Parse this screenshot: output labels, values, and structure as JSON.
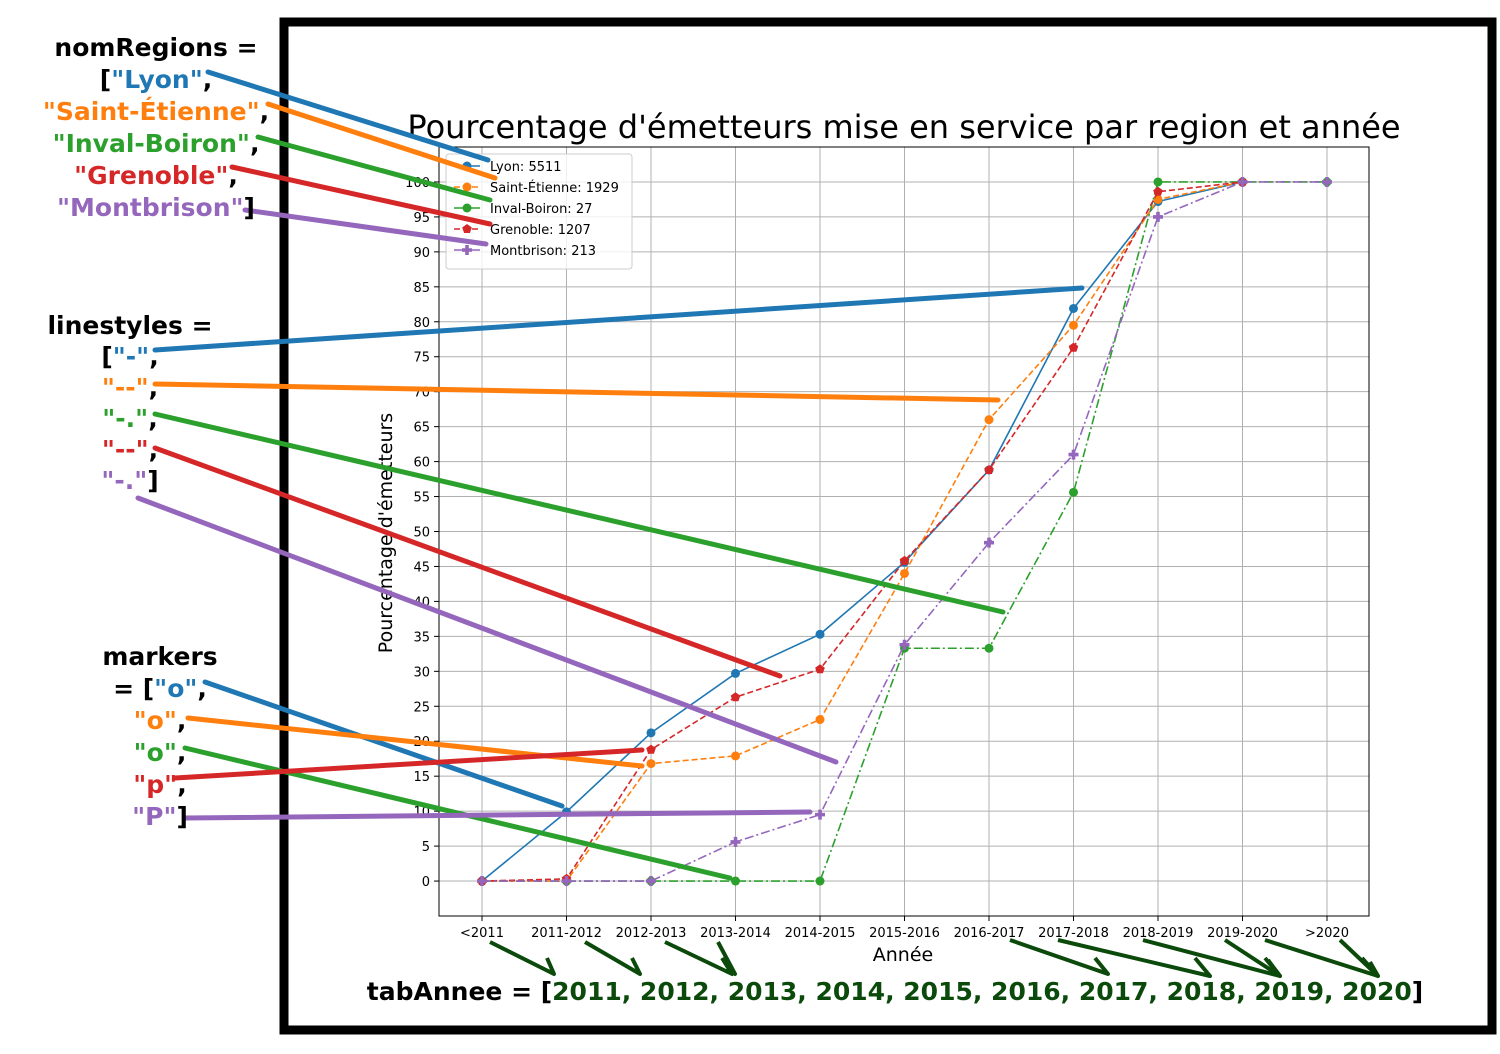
{
  "chart_data": {
    "type": "line",
    "title": "Pourcentage d'émetteurs mise en service par region et année",
    "xlabel": "Année",
    "ylabel": "Pourcentage d'émetteurs",
    "categories": [
      "<2011",
      "2011-2012",
      "2012-2013",
      "2013-2014",
      "2014-2015",
      "2015-2016",
      "2016-2017",
      "2017-2018",
      "2018-2019",
      "2019-2020",
      ">2020"
    ],
    "yticks": [
      0,
      5,
      10,
      15,
      20,
      25,
      30,
      35,
      40,
      45,
      50,
      55,
      60,
      65,
      70,
      75,
      80,
      85,
      90,
      95,
      100
    ],
    "ylim": [
      -5,
      105
    ],
    "grid": true,
    "legend_position": "top-left",
    "series": [
      {
        "name": "Lyon: 5511",
        "color": "#1f77b4",
        "dash": "solid",
        "marker": "o",
        "values": [
          0,
          9.9,
          21.2,
          29.7,
          35.3,
          45.6,
          58.8,
          81.9,
          97.2,
          100,
          null
        ]
      },
      {
        "name": "Saint-Étienne: 1929",
        "color": "#ff7f0e",
        "dash": "dashed",
        "marker": "o",
        "values": [
          0,
          0,
          16.8,
          17.9,
          23.1,
          44,
          66,
          79.5,
          97.5,
          100,
          null
        ]
      },
      {
        "name": "Inval-Boiron: 27",
        "color": "#2ca02c",
        "dash": "dashdot",
        "marker": "o",
        "values": [
          0,
          0,
          0,
          0,
          0,
          33.3,
          33.3,
          55.6,
          100,
          100,
          100
        ]
      },
      {
        "name": "Grenoble: 1207",
        "color": "#d62728",
        "dash": "dashed",
        "marker": "p",
        "values": [
          0,
          0.3,
          18.8,
          26.3,
          30.3,
          45.8,
          58.8,
          76.3,
          98.6,
          100,
          null
        ]
      },
      {
        "name": "Montbrison: 213",
        "color": "#9467bd",
        "dash": "dashdot",
        "marker": "P",
        "values": [
          0,
          0,
          0,
          5.6,
          9.5,
          33.8,
          48.4,
          61,
          95,
          100,
          100
        ]
      }
    ]
  },
  "annotations": {
    "nomRegions": {
      "head": "nomRegions =",
      "lines": [
        [
          {
            "t": "[",
            "c": "#000000"
          },
          {
            "t": "\"Lyon\"",
            "c": "#1f77b4"
          },
          {
            "t": ",",
            "c": "#000000"
          }
        ],
        [
          {
            "t": "\"Saint-Étienne\"",
            "c": "#ff7f0e"
          },
          {
            "t": ",",
            "c": "#000000"
          }
        ],
        [
          {
            "t": "\"Inval-Boiron\"",
            "c": "#2ca02c"
          },
          {
            "t": ",",
            "c": "#000000"
          }
        ],
        [
          {
            "t": "\"Grenoble\"",
            "c": "#d62728"
          },
          {
            "t": ",",
            "c": "#000000"
          }
        ],
        [
          {
            "t": "\"Montbrison\"",
            "c": "#9467bd"
          },
          {
            "t": "]",
            "c": "#000000"
          }
        ]
      ]
    },
    "linestyles": {
      "head": "linestyles =",
      "lines": [
        [
          {
            "t": "[",
            "c": "#000000"
          },
          {
            "t": "\"-\"",
            "c": "#1f77b4"
          },
          {
            "t": ",",
            "c": "#000000"
          }
        ],
        [
          {
            "t": "\"--\"",
            "c": "#ff7f0e"
          },
          {
            "t": ",",
            "c": "#000000"
          }
        ],
        [
          {
            "t": "\"-.\"",
            "c": "#2ca02c"
          },
          {
            "t": ",",
            "c": "#000000"
          }
        ],
        [
          {
            "t": "\"--\"",
            "c": "#d62728"
          },
          {
            "t": ",",
            "c": "#000000"
          }
        ],
        [
          {
            "t": "\"-.\"",
            "c": "#9467bd"
          },
          {
            "t": "]",
            "c": "#000000"
          }
        ]
      ]
    },
    "markers": {
      "head": "markers",
      "lines": [
        [
          {
            "t": "= [",
            "c": "#000000"
          },
          {
            "t": "\"o\"",
            "c": "#1f77b4"
          },
          {
            "t": ",",
            "c": "#000000"
          }
        ],
        [
          {
            "t": "\"o\"",
            "c": "#ff7f0e"
          },
          {
            "t": ",",
            "c": "#000000"
          }
        ],
        [
          {
            "t": "\"o\"",
            "c": "#2ca02c"
          },
          {
            "t": ",",
            "c": "#000000"
          }
        ],
        [
          {
            "t": "\"p\"",
            "c": "#d62728"
          },
          {
            "t": ",",
            "c": "#000000"
          }
        ],
        [
          {
            "t": "\"P\"",
            "c": "#9467bd"
          },
          {
            "t": "]",
            "c": "#000000"
          }
        ]
      ]
    },
    "tabAnnee": {
      "prefix": "tabAnnee = [",
      "values": "2011, 2012, 2013, 2014, 2015, 2016, 2017, 2018, 2019, 2020",
      "suffix": "]",
      "values_color": "#0b4a0b"
    }
  }
}
